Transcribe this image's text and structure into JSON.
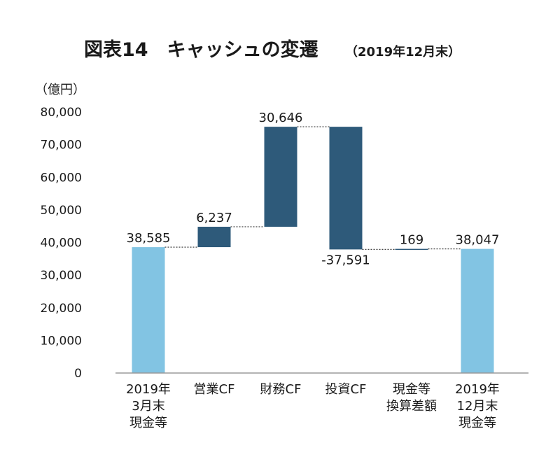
{
  "chart_data": {
    "type": "bar",
    "subtype": "waterfall",
    "title": "図表14　キャッシュの変遷",
    "subtitle": "（2019年12月末）",
    "unit_label": "（億円）",
    "ylim": [
      0,
      80000
    ],
    "y_ticks": [
      "0",
      "10,000",
      "20,000",
      "30,000",
      "40,000",
      "50,000",
      "60,000",
      "70,000",
      "80,000"
    ],
    "categories": [
      [
        "2019年",
        "3月末",
        "現金等"
      ],
      [
        "営業CF"
      ],
      [
        "財務CF"
      ],
      [
        "投資CF"
      ],
      [
        "現金等",
        "換算差額"
      ],
      [
        "2019年",
        "12月末",
        "現金等"
      ]
    ],
    "bars": [
      {
        "kind": "total",
        "start": 0,
        "end": 38585,
        "label": "38,585"
      },
      {
        "kind": "change",
        "start": 38585,
        "end": 44822,
        "label": "6,237"
      },
      {
        "kind": "change",
        "start": 44822,
        "end": 75468,
        "label": "30,646"
      },
      {
        "kind": "change",
        "start": 75468,
        "end": 37877,
        "label": "-37,591"
      },
      {
        "kind": "change",
        "start": 37877,
        "end": 38046,
        "label": "169"
      },
      {
        "kind": "total",
        "start": 0,
        "end": 38047,
        "label": "38,047"
      }
    ],
    "colors": {
      "total": "#82c4e3",
      "change": "#2e5a7a",
      "axis": "#9a9a9a",
      "connector": "#444444"
    },
    "grid": false,
    "legend": "none"
  }
}
